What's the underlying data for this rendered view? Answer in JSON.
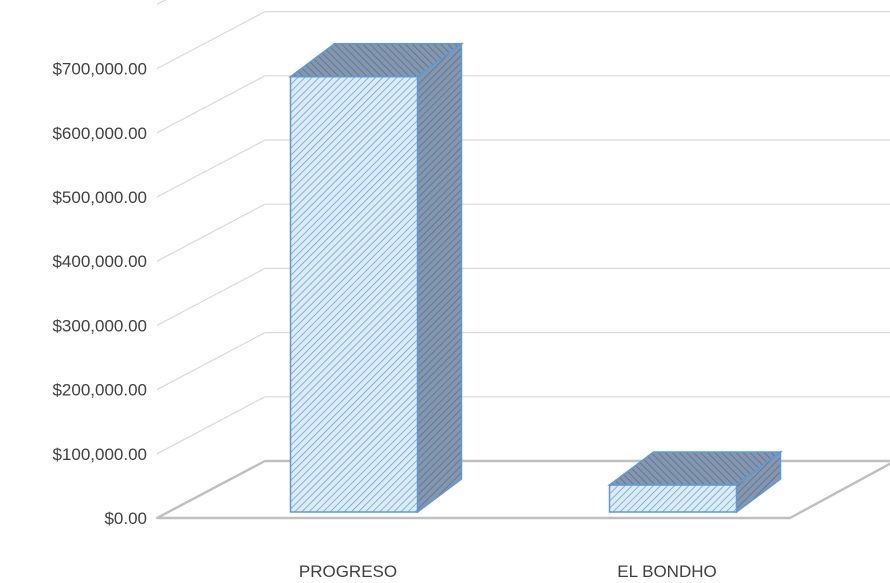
{
  "chart_data": {
    "type": "bar",
    "style": "3d-column",
    "categories": [
      "PROGRESO",
      "EL BONDHO"
    ],
    "series": [
      {
        "values": [
          678000,
          42000
        ],
        "color": "#ddebf7",
        "edge_color": "#5b9bd5",
        "side_color": "#8497b0"
      }
    ],
    "y_ticks": [
      "$0.00",
      "$100,000.00",
      "$200,000.00",
      "$300,000.00",
      "$400,000.00",
      "$500,000.00",
      "$600,000.00",
      "$700,000.00"
    ],
    "ylim": [
      0,
      700000
    ],
    "y_step": 100000,
    "grid": true,
    "legend": "none",
    "title": "",
    "xlabel": "",
    "ylabel": ""
  }
}
